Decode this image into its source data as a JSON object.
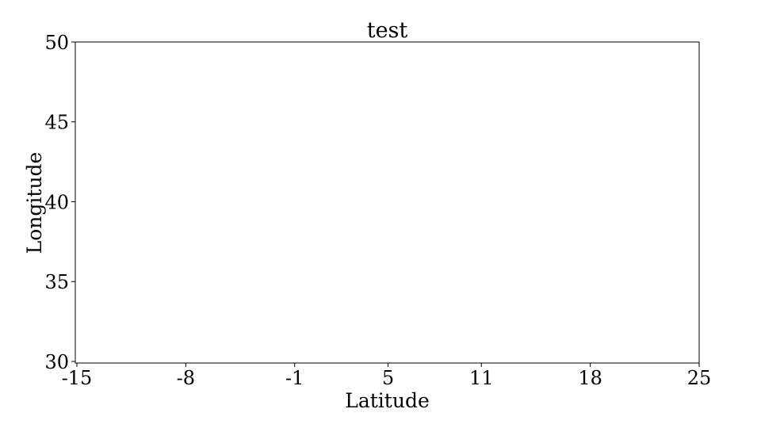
{
  "chart_data": {
    "type": "scatter",
    "title": "test",
    "xlabel": "Latitude",
    "ylabel": "Longitude",
    "xlim": [
      -15.1,
      25
    ],
    "ylim": [
      29.9,
      50
    ],
    "x_ticks": [
      -15,
      -8,
      -1,
      5,
      11,
      18,
      25
    ],
    "x_tick_labels": [
      "-15",
      "-8",
      "-1",
      "5",
      "11",
      "18",
      "25"
    ],
    "y_ticks": [
      30,
      35,
      40,
      45,
      50
    ],
    "y_tick_labels": [
      "30",
      "35",
      "40",
      "45",
      "50"
    ],
    "series": [],
    "grid": false,
    "legend": "none"
  }
}
